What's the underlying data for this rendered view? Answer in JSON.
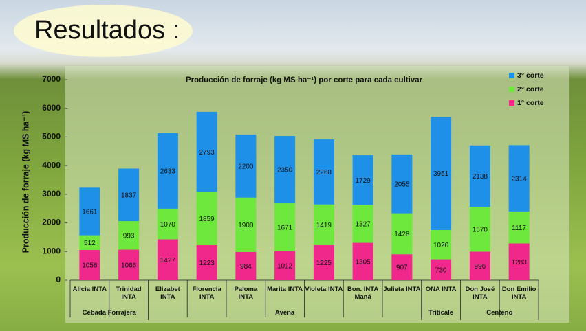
{
  "heading": "Resultados :",
  "chart_data": {
    "type": "stacked-bar",
    "title": "Producción de forraje (kg MS ha⁻¹) por corte para cada cultivar",
    "y_label": "Producción de forraje (kg MS ha⁻¹)",
    "categories": [
      "Alicia INTA",
      "Trinidad INTA",
      "Elizabet INTA",
      "Florencia INTA",
      "Paloma INTA",
      "Marita INTA",
      "Violeta INTA",
      "Bon. INTA Maná",
      "Julieta INTA",
      "ONA INTA",
      "Don José INTA",
      "Don Emilio INTA"
    ],
    "groups": [
      "Cebada Forrajera",
      "Avena",
      "Triticale",
      "Centeno"
    ],
    "series": [
      {
        "name": "1° corte",
        "color": "#f0288c",
        "values": [
          1056,
          1066,
          1427,
          1223,
          984,
          1012,
          1225,
          1305,
          907,
          730,
          996,
          1283
        ]
      },
      {
        "name": "2° corte",
        "color": "#6ee83c",
        "values": [
          512,
          993,
          1070,
          1859,
          1900,
          1671,
          1419,
          1327,
          1428,
          1020,
          1570,
          1117
        ]
      },
      {
        "name": "3° corte",
        "color": "#1f90e8",
        "values": [
          1661,
          1837,
          2633,
          2793,
          2200,
          2350,
          2268,
          1729,
          2055,
          3951,
          2138,
          2314
        ]
      }
    ],
    "ylim": [
      0,
      7000
    ],
    "yticks": [
      0,
      1000,
      2000,
      3000,
      4000,
      5000,
      6000,
      7000
    ],
    "legend": "top-right"
  }
}
